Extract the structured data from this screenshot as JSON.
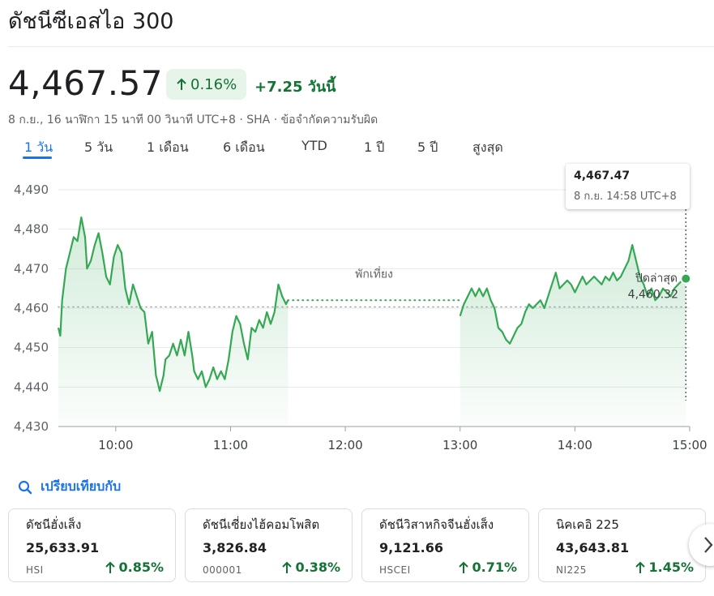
{
  "header": {
    "title": "ดัชนีซีเอสไอ 300",
    "price": "4,467.57",
    "change_pct": "0.16%",
    "change_abs": "+7.25 วันนี้",
    "meta": "8 ก.ย., 16 นาฬิกา 15 นาที 00 วินาที UTC+8 · SHA · ข้อจำกัดความรับผิด"
  },
  "tabs": [
    "1 วัน",
    "5 วัน",
    "1 เดือน",
    "6 เดือน",
    "YTD",
    "1 ปี",
    "5 ปี",
    "สูงสุด"
  ],
  "active_tab": 0,
  "tooltip": {
    "value": "4,467.47",
    "time": "8 ก.ย. 14:58 UTC+8"
  },
  "colors": {
    "accent": "#1a73e8",
    "up": "#137333",
    "line": "#34a853"
  },
  "chart_data": {
    "type": "line",
    "y_ticks": [
      "4,430",
      "4,440",
      "4,450",
      "4,460",
      "4,470",
      "4,480",
      "4,490"
    ],
    "x_ticks": [
      "10:00",
      "11:00",
      "12:00",
      "13:00",
      "14:00",
      "15:00"
    ],
    "ylim": [
      4430,
      4490
    ],
    "xlim": [
      "09:30",
      "15:00"
    ],
    "previous_close": 4460.32,
    "previous_close_label": "ปิดล่าสุด",
    "previous_close_value": "4,460.32",
    "lunch_label": "พักเที่ยง",
    "lunch_break": [
      "11:30",
      "13:00"
    ],
    "hover_time": "14:58",
    "series": [
      {
        "values": [
          [
            "09:30",
            4455
          ],
          [
            "09:31",
            4453
          ],
          [
            "09:32",
            4462
          ],
          [
            "09:34",
            4470
          ],
          [
            "09:36",
            4474
          ],
          [
            "09:38",
            4478
          ],
          [
            "09:40",
            4477
          ],
          [
            "09:42",
            4483
          ],
          [
            "09:44",
            4478
          ],
          [
            "09:45",
            4470
          ],
          [
            "09:47",
            4472
          ],
          [
            "09:49",
            4476
          ],
          [
            "09:51",
            4479
          ],
          [
            "09:53",
            4474
          ],
          [
            "09:55",
            4468
          ],
          [
            "09:57",
            4466
          ],
          [
            "09:59",
            4473
          ],
          [
            "10:01",
            4476
          ],
          [
            "10:03",
            4474
          ],
          [
            "10:05",
            4465
          ],
          [
            "10:07",
            4461
          ],
          [
            "10:09",
            4466
          ],
          [
            "10:11",
            4463
          ],
          [
            "10:13",
            4460
          ],
          [
            "10:15",
            4459
          ],
          [
            "10:17",
            4451
          ],
          [
            "10:19",
            4454
          ],
          [
            "10:21",
            4443
          ],
          [
            "10:22",
            4441
          ],
          [
            "10:23",
            4439
          ],
          [
            "10:25",
            4443
          ],
          [
            "10:26",
            4447
          ],
          [
            "10:28",
            4448
          ],
          [
            "10:30",
            4451
          ],
          [
            "10:32",
            4448
          ],
          [
            "10:34",
            4452
          ],
          [
            "10:36",
            4448
          ],
          [
            "10:38",
            4454
          ],
          [
            "10:40",
            4448
          ],
          [
            "10:41",
            4444
          ],
          [
            "10:43",
            4442
          ],
          [
            "10:45",
            4444
          ],
          [
            "10:47",
            4440
          ],
          [
            "10:49",
            4442
          ],
          [
            "10:51",
            4445
          ],
          [
            "10:53",
            4442
          ],
          [
            "10:55",
            4444
          ],
          [
            "10:57",
            4442
          ],
          [
            "10:59",
            4447
          ],
          [
            "11:01",
            4454
          ],
          [
            "11:03",
            4458
          ],
          [
            "11:05",
            4456
          ],
          [
            "11:07",
            4451
          ],
          [
            "11:09",
            4447
          ],
          [
            "11:11",
            4455
          ],
          [
            "11:13",
            4454
          ],
          [
            "11:15",
            4457
          ],
          [
            "11:17",
            4455
          ],
          [
            "11:19",
            4459
          ],
          [
            "11:21",
            4456
          ],
          [
            "11:23",
            4459
          ],
          [
            "11:25",
            4466
          ],
          [
            "11:27",
            4463
          ],
          [
            "11:29",
            4461
          ],
          [
            "11:30",
            4462
          ],
          [
            "13:00",
            4458
          ],
          [
            "13:02",
            4461
          ],
          [
            "13:04",
            4463
          ],
          [
            "13:06",
            4465
          ],
          [
            "13:08",
            4463
          ],
          [
            "13:10",
            4465
          ],
          [
            "13:12",
            4463
          ],
          [
            "13:14",
            4465
          ],
          [
            "13:16",
            4462
          ],
          [
            "13:18",
            4460
          ],
          [
            "13:20",
            4455
          ],
          [
            "13:22",
            4454
          ],
          [
            "13:24",
            4452
          ],
          [
            "13:26",
            4451
          ],
          [
            "13:28",
            4453
          ],
          [
            "13:30",
            4455
          ],
          [
            "13:32",
            4456
          ],
          [
            "13:34",
            4459
          ],
          [
            "13:36",
            4461
          ],
          [
            "13:38",
            4460
          ],
          [
            "13:40",
            4461
          ],
          [
            "13:42",
            4462
          ],
          [
            "13:44",
            4460
          ],
          [
            "13:46",
            4463
          ],
          [
            "13:48",
            4466
          ],
          [
            "13:50",
            4469
          ],
          [
            "13:52",
            4465
          ],
          [
            "13:54",
            4466
          ],
          [
            "13:56",
            4467
          ],
          [
            "13:58",
            4466
          ],
          [
            "14:00",
            4464
          ],
          [
            "14:02",
            4466
          ],
          [
            "14:04",
            4468
          ],
          [
            "14:06",
            4466
          ],
          [
            "14:08",
            4467
          ],
          [
            "14:10",
            4468
          ],
          [
            "14:12",
            4467
          ],
          [
            "14:14",
            4466
          ],
          [
            "14:16",
            4468
          ],
          [
            "14:18",
            4467
          ],
          [
            "14:20",
            4469
          ],
          [
            "14:22",
            4467
          ],
          [
            "14:24",
            4468
          ],
          [
            "14:26",
            4470
          ],
          [
            "14:28",
            4472
          ],
          [
            "14:30",
            4476
          ],
          [
            "14:32",
            4472
          ],
          [
            "14:34",
            4468
          ],
          [
            "14:36",
            4466
          ],
          [
            "14:38",
            4463
          ],
          [
            "14:40",
            4465
          ],
          [
            "14:42",
            4462
          ],
          [
            "14:44",
            4463
          ],
          [
            "14:46",
            4465
          ],
          [
            "14:48",
            4464
          ],
          [
            "14:50",
            4463
          ],
          [
            "14:52",
            4465
          ],
          [
            "14:54",
            4466
          ],
          [
            "14:56",
            4467
          ],
          [
            "14:58",
            4467.47
          ]
        ]
      }
    ]
  },
  "compare": {
    "label": "เปรียบเทียบกับ"
  },
  "cards": [
    {
      "name": "ดัชนีฮั่งเส็ง",
      "value": "25,633.91",
      "symbol": "HSI",
      "pct": "0.85%"
    },
    {
      "name": "ดัชนีเซี่ยงไฮ้คอมโพสิต",
      "value": "3,826.84",
      "symbol": "000001",
      "pct": "0.38%"
    },
    {
      "name": "ดัชนีวิสาหกิจจีนฮั่งเส็ง",
      "value": "9,121.66",
      "symbol": "HSCEI",
      "pct": "0.71%"
    },
    {
      "name": "นิคเคอิ 225",
      "value": "43,643.81",
      "symbol": "NI225",
      "pct": "1.45%"
    }
  ]
}
